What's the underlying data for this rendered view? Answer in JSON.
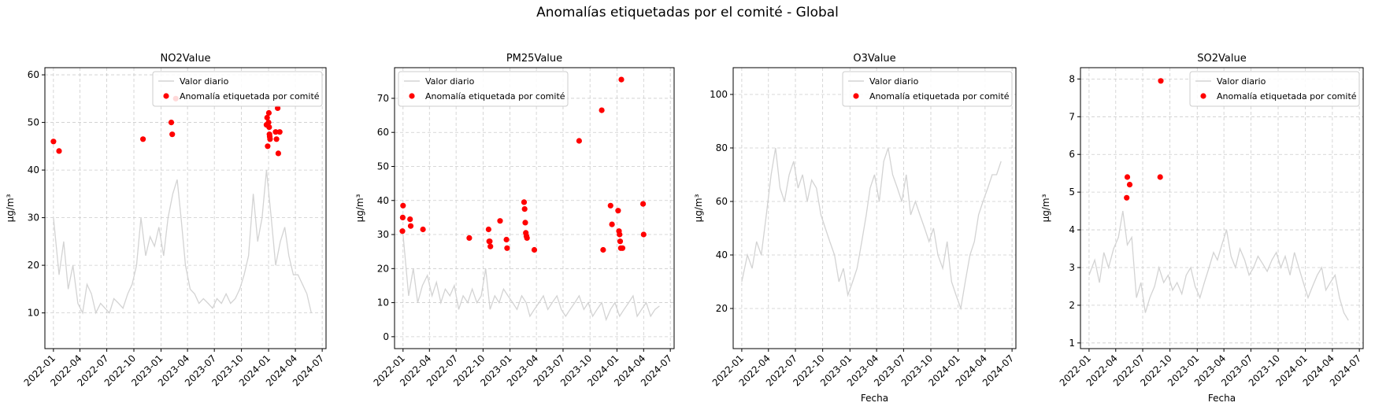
{
  "figure_title": "Anomalías etiquetadas por el comité - Global",
  "colors": {
    "line": "#d3d3d3",
    "anomaly": "#ff0000",
    "grid": "#cccccc",
    "axes": "#000000"
  },
  "chart_data": [
    {
      "type": "line",
      "title": "NO2Value",
      "xlabel": "",
      "ylabel": "µg/m³",
      "xlim": [
        "2021-12-03",
        "2024-07-14"
      ],
      "ylim": [
        2.5,
        61.5
      ],
      "x_ticks": [
        "2022-01",
        "2022-04",
        "2022-07",
        "2022-10",
        "2023-01",
        "2023-04",
        "2023-07",
        "2023-10",
        "2024-01",
        "2024-04",
        "2024-07"
      ],
      "y_ticks": [
        10,
        20,
        30,
        40,
        50,
        60
      ],
      "grid": true,
      "legend_position": "upper right",
      "series": [
        {
          "name": "Valor diario",
          "kind": "line",
          "x": [
            "2022-01-01",
            "2022-01-20",
            "2022-02-05",
            "2022-02-20",
            "2022-03-08",
            "2022-03-25",
            "2022-04-10",
            "2022-04-25",
            "2022-05-10",
            "2022-05-25",
            "2022-06-10",
            "2022-06-25",
            "2022-07-10",
            "2022-07-25",
            "2022-08-10",
            "2022-08-25",
            "2022-09-10",
            "2022-09-25",
            "2022-10-10",
            "2022-10-25",
            "2022-11-10",
            "2022-11-25",
            "2022-12-10",
            "2022-12-25",
            "2023-01-10",
            "2023-01-25",
            "2023-02-10",
            "2023-02-25",
            "2023-03-10",
            "2023-03-25",
            "2023-04-10",
            "2023-04-25",
            "2023-05-10",
            "2023-05-25",
            "2023-06-10",
            "2023-06-25",
            "2023-07-10",
            "2023-07-25",
            "2023-08-10",
            "2023-08-25",
            "2023-09-10",
            "2023-09-25",
            "2023-10-10",
            "2023-10-25",
            "2023-11-10",
            "2023-11-25",
            "2023-12-10",
            "2023-12-25",
            "2024-01-10",
            "2024-01-25",
            "2024-02-10",
            "2024-02-25",
            "2024-03-10",
            "2024-03-25",
            "2024-04-10",
            "2024-04-25",
            "2024-05-10",
            "2024-05-25"
          ],
          "y": [
            30,
            18,
            25,
            15,
            20,
            12,
            10,
            16,
            14,
            10,
            12,
            11,
            10,
            13,
            12,
            11,
            14,
            16,
            20,
            30,
            22,
            26,
            24,
            28,
            22,
            30,
            35,
            38,
            30,
            20,
            15,
            14,
            12,
            13,
            12,
            11,
            13,
            12,
            14,
            12,
            13,
            15,
            18,
            22,
            35,
            25,
            30,
            40,
            30,
            20,
            25,
            28,
            22,
            18,
            18,
            16,
            14,
            10
          ]
        },
        {
          "name": "Anomalía etiquetada por comité",
          "kind": "scatter",
          "x": [
            "2022-01-01",
            "2022-01-20",
            "2022-11-01",
            "2023-02-05",
            "2023-02-08",
            "2023-02-20",
            "2023-12-25",
            "2023-12-27",
            "2023-12-29",
            "2024-01-01",
            "2024-01-02",
            "2024-01-03",
            "2024-01-04",
            "2024-01-05",
            "2024-01-06",
            "2024-01-25",
            "2024-01-28",
            "2024-02-01",
            "2024-02-03",
            "2024-02-08"
          ],
          "y": [
            46,
            44,
            46.5,
            50,
            47.5,
            55,
            49.5,
            51,
            45,
            50,
            52,
            49,
            47.5,
            47,
            46.5,
            48,
            46.5,
            53,
            43.5,
            48
          ]
        }
      ]
    },
    {
      "type": "line",
      "title": "PM25Value",
      "xlabel": "",
      "ylabel": "µg/m³",
      "xlim": [
        "2021-12-03",
        "2024-07-14"
      ],
      "ylim": [
        -3.5,
        79
      ],
      "x_ticks": [
        "2022-01",
        "2022-04",
        "2022-07",
        "2022-10",
        "2023-01",
        "2023-04",
        "2023-07",
        "2023-10",
        "2024-01",
        "2024-04",
        "2024-07"
      ],
      "y_ticks": [
        0,
        10,
        20,
        30,
        40,
        50,
        60,
        70
      ],
      "grid": true,
      "legend_position": "upper left",
      "series": [
        {
          "name": "Valor diario",
          "kind": "line",
          "x": [
            "2022-01-01",
            "2022-01-20",
            "2022-02-05",
            "2022-02-20",
            "2022-03-08",
            "2022-03-25",
            "2022-04-10",
            "2022-04-25",
            "2022-05-10",
            "2022-05-25",
            "2022-06-10",
            "2022-06-25",
            "2022-07-10",
            "2022-07-25",
            "2022-08-10",
            "2022-08-25",
            "2022-09-10",
            "2022-09-25",
            "2022-10-10",
            "2022-10-25",
            "2022-11-10",
            "2022-11-25",
            "2022-12-10",
            "2022-12-25",
            "2023-01-10",
            "2023-01-25",
            "2023-02-10",
            "2023-02-25",
            "2023-03-10",
            "2023-03-25",
            "2023-04-10",
            "2023-04-25",
            "2023-05-10",
            "2023-05-25",
            "2023-06-10",
            "2023-06-25",
            "2023-07-10",
            "2023-07-25",
            "2023-08-10",
            "2023-08-25",
            "2023-09-10",
            "2023-09-25",
            "2023-10-10",
            "2023-10-25",
            "2023-11-10",
            "2023-11-25",
            "2023-12-10",
            "2023-12-25",
            "2024-01-10",
            "2024-01-25",
            "2024-02-10",
            "2024-02-25",
            "2024-03-10",
            "2024-03-25",
            "2024-04-10",
            "2024-04-25",
            "2024-05-10",
            "2024-05-25"
          ],
          "y": [
            30,
            12,
            20,
            10,
            15,
            18,
            12,
            16,
            10,
            14,
            12,
            15,
            8,
            12,
            10,
            14,
            10,
            12,
            20,
            8,
            12,
            10,
            14,
            12,
            10,
            8,
            12,
            10,
            6,
            8,
            10,
            12,
            8,
            10,
            12,
            8,
            6,
            8,
            10,
            12,
            8,
            10,
            6,
            8,
            10,
            5,
            8,
            10,
            6,
            8,
            10,
            12,
            6,
            8,
            10,
            6,
            8,
            9
          ]
        },
        {
          "name": "Anomalía etiquetada por comité",
          "kind": "scatter",
          "x": [
            "2021-12-30",
            "2021-12-31",
            "2022-01-01",
            "2022-01-25",
            "2022-01-27",
            "2022-03-10",
            "2022-08-15",
            "2022-10-20",
            "2022-10-22",
            "2022-10-24",
            "2022-10-26",
            "2022-11-28",
            "2022-12-20",
            "2022-12-22",
            "2023-02-18",
            "2023-02-20",
            "2023-02-22",
            "2023-02-24",
            "2023-02-26",
            "2023-02-28",
            "2023-03-25",
            "2023-08-25",
            "2023-11-10",
            "2023-11-15",
            "2023-12-10",
            "2023-12-15",
            "2024-01-05",
            "2024-01-08",
            "2024-01-10",
            "2024-01-12",
            "2024-01-14",
            "2024-01-16",
            "2024-01-20",
            "2024-03-30",
            "2024-04-01"
          ],
          "y": [
            31,
            35,
            38.5,
            34.5,
            32.5,
            31.5,
            29,
            31.5,
            28,
            28,
            26.5,
            34,
            28.5,
            26,
            39.5,
            37.5,
            33.5,
            30.5,
            29.5,
            29,
            25.5,
            57.5,
            66.5,
            25.5,
            38.5,
            33,
            37,
            31,
            30,
            28,
            26,
            75.5,
            26,
            39,
            30
          ]
        }
      ]
    },
    {
      "type": "line",
      "title": "O3Value",
      "xlabel": "Fecha",
      "ylabel": "µg/m³",
      "xlim": [
        "2021-12-03",
        "2024-07-14"
      ],
      "ylim": [
        5,
        110
      ],
      "x_ticks": [
        "2022-01",
        "2022-04",
        "2022-07",
        "2022-10",
        "2023-01",
        "2023-04",
        "2023-07",
        "2023-10",
        "2024-01",
        "2024-04",
        "2024-07"
      ],
      "y_ticks": [
        20,
        40,
        60,
        80,
        100
      ],
      "grid": true,
      "legend_position": "upper right",
      "series": [
        {
          "name": "Valor diario",
          "kind": "line",
          "x": [
            "2022-01-01",
            "2022-01-20",
            "2022-02-05",
            "2022-02-20",
            "2022-03-08",
            "2022-03-25",
            "2022-04-10",
            "2022-04-25",
            "2022-05-10",
            "2022-05-25",
            "2022-06-10",
            "2022-06-25",
            "2022-07-10",
            "2022-07-25",
            "2022-08-10",
            "2022-08-25",
            "2022-09-10",
            "2022-09-25",
            "2022-10-10",
            "2022-10-25",
            "2022-11-10",
            "2022-11-25",
            "2022-12-10",
            "2022-12-25",
            "2023-01-10",
            "2023-01-25",
            "2023-02-10",
            "2023-02-25",
            "2023-03-10",
            "2023-03-25",
            "2023-04-10",
            "2023-04-25",
            "2023-05-10",
            "2023-05-25",
            "2023-06-10",
            "2023-06-25",
            "2023-07-10",
            "2023-07-25",
            "2023-08-10",
            "2023-08-25",
            "2023-09-10",
            "2023-09-25",
            "2023-10-10",
            "2023-10-25",
            "2023-11-10",
            "2023-11-25",
            "2023-12-10",
            "2023-12-25",
            "2024-01-10",
            "2024-01-25",
            "2024-02-10",
            "2024-02-25",
            "2024-03-10",
            "2024-03-25",
            "2024-04-10",
            "2024-04-25",
            "2024-05-10",
            "2024-05-25"
          ],
          "y": [
            30,
            40,
            35,
            45,
            40,
            55,
            70,
            80,
            65,
            60,
            70,
            75,
            65,
            70,
            60,
            68,
            65,
            55,
            50,
            45,
            40,
            30,
            35,
            25,
            30,
            35,
            45,
            55,
            65,
            70,
            60,
            75,
            80,
            70,
            65,
            60,
            70,
            55,
            60,
            55,
            50,
            45,
            50,
            40,
            35,
            45,
            30,
            25,
            20,
            30,
            40,
            45,
            55,
            60,
            65,
            70,
            70,
            75
          ]
        },
        {
          "name": "Anomalía etiquetada por comité",
          "kind": "scatter",
          "x": [],
          "y": []
        }
      ]
    },
    {
      "type": "line",
      "title": "SO2Value",
      "xlabel": "Fecha",
      "ylabel": "µg/m³",
      "xlim": [
        "2021-12-03",
        "2024-07-14"
      ],
      "ylim": [
        0.85,
        8.3
      ],
      "x_ticks": [
        "2022-01",
        "2022-04",
        "2022-07",
        "2022-10",
        "2023-01",
        "2023-04",
        "2023-07",
        "2023-10",
        "2024-01",
        "2024-04",
        "2024-07"
      ],
      "y_ticks": [
        1,
        2,
        3,
        4,
        5,
        6,
        7,
        8
      ],
      "grid": true,
      "legend_position": "upper right",
      "series": [
        {
          "name": "Valor diario",
          "kind": "line",
          "x": [
            "2022-01-01",
            "2022-01-20",
            "2022-02-05",
            "2022-02-20",
            "2022-03-08",
            "2022-03-25",
            "2022-04-10",
            "2022-04-25",
            "2022-05-10",
            "2022-05-25",
            "2022-06-10",
            "2022-06-25",
            "2022-07-10",
            "2022-07-25",
            "2022-08-10",
            "2022-08-25",
            "2022-09-10",
            "2022-09-25",
            "2022-10-10",
            "2022-10-25",
            "2022-11-10",
            "2022-11-25",
            "2022-12-10",
            "2022-12-25",
            "2023-01-10",
            "2023-01-25",
            "2023-02-10",
            "2023-02-25",
            "2023-03-10",
            "2023-03-25",
            "2023-04-10",
            "2023-04-25",
            "2023-05-10",
            "2023-05-25",
            "2023-06-10",
            "2023-06-25",
            "2023-07-10",
            "2023-07-25",
            "2023-08-10",
            "2023-08-25",
            "2023-09-10",
            "2023-09-25",
            "2023-10-10",
            "2023-10-25",
            "2023-11-10",
            "2023-11-25",
            "2023-12-10",
            "2023-12-25",
            "2024-01-10",
            "2024-01-25",
            "2024-02-10",
            "2024-02-25",
            "2024-03-10",
            "2024-03-25",
            "2024-04-10",
            "2024-04-25",
            "2024-05-10",
            "2024-05-25"
          ],
          "y": [
            2.8,
            3.2,
            2.6,
            3.4,
            3.0,
            3.5,
            3.8,
            4.5,
            3.6,
            3.8,
            2.2,
            2.6,
            1.8,
            2.2,
            2.5,
            3.0,
            2.6,
            2.8,
            2.4,
            2.6,
            2.3,
            2.8,
            3.0,
            2.5,
            2.2,
            2.6,
            3.0,
            3.4,
            3.2,
            3.6,
            4.0,
            3.3,
            3.0,
            3.5,
            3.2,
            2.8,
            3.0,
            3.3,
            3.1,
            2.9,
            3.2,
            3.4,
            3.0,
            3.3,
            2.8,
            3.4,
            3.0,
            2.6,
            2.2,
            2.5,
            2.8,
            3.0,
            2.4,
            2.6,
            2.8,
            2.2,
            1.8,
            1.6
          ]
        },
        {
          "name": "Anomalía etiquetada por comité",
          "kind": "scatter",
          "x": [
            "2022-05-08",
            "2022-05-10",
            "2022-05-18",
            "2022-08-29",
            "2022-08-31"
          ],
          "y": [
            4.85,
            5.4,
            5.2,
            5.4,
            7.95
          ]
        }
      ]
    }
  ]
}
